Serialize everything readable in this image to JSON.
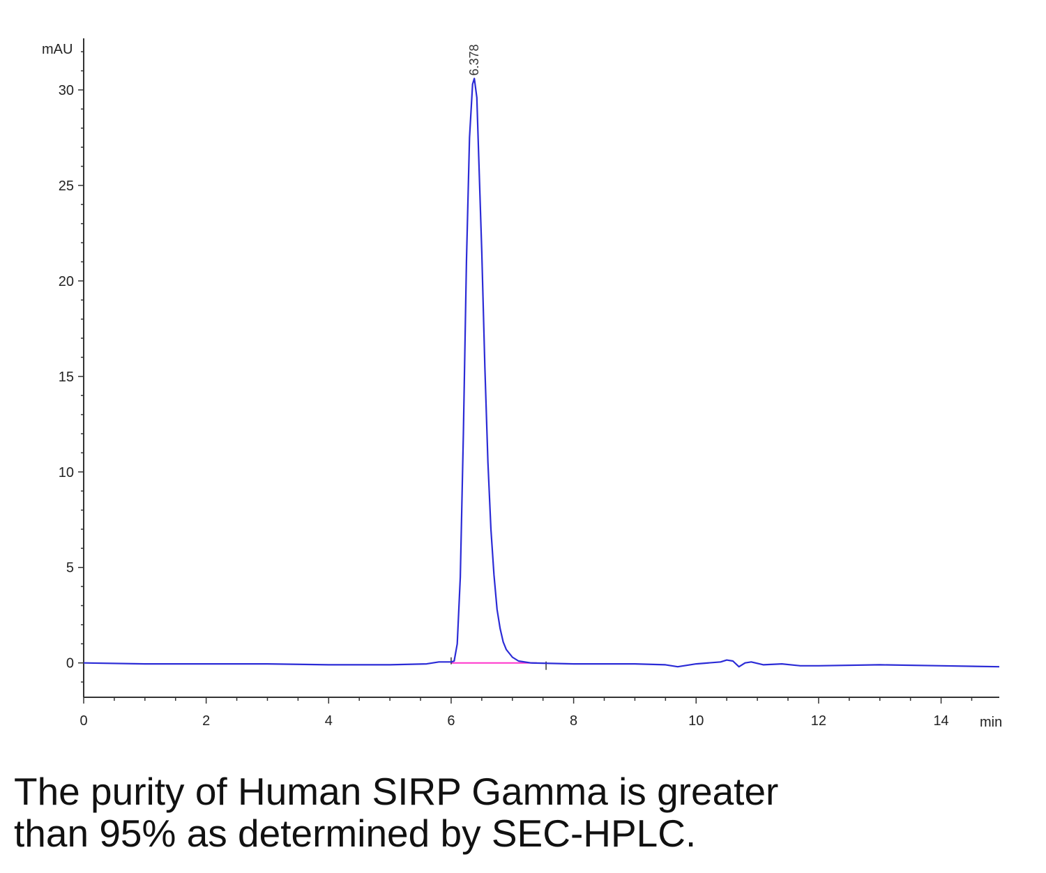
{
  "chart_data": {
    "type": "line",
    "y_unit": "mAU",
    "x_unit": "min",
    "xlim": [
      0,
      14.95
    ],
    "ylim": [
      -1.8,
      32.7
    ],
    "x_ticks": [
      0,
      2,
      4,
      6,
      8,
      10,
      12,
      14
    ],
    "x_tick_labels": [
      "0",
      "2",
      "4",
      "6",
      "8",
      "10",
      "12",
      "14"
    ],
    "y_ticks": [
      0,
      5,
      10,
      15,
      20,
      25,
      30
    ],
    "y_tick_labels": [
      "0",
      "5",
      "10",
      "15",
      "20",
      "25",
      "30"
    ],
    "grid": false,
    "colors": {
      "trace": "#2b2bd6",
      "baseline": "#ff33cc",
      "axis": "#333333"
    },
    "peak_annotation": {
      "x": 6.378,
      "label": "6.378"
    },
    "series": [
      {
        "values": [
          [
            0,
            0
          ],
          [
            1,
            -0.05
          ],
          [
            2,
            -0.05
          ],
          [
            3,
            -0.05
          ],
          [
            4,
            -0.1
          ],
          [
            5,
            -0.1
          ],
          [
            5.6,
            -0.05
          ],
          [
            5.8,
            0.05
          ],
          [
            6.0,
            0.05
          ],
          [
            6.05,
            0.1
          ],
          [
            6.1,
            1.0
          ],
          [
            6.15,
            4.5
          ],
          [
            6.2,
            12.0
          ],
          [
            6.25,
            21.0
          ],
          [
            6.3,
            27.5
          ],
          [
            6.35,
            30.3
          ],
          [
            6.378,
            30.6
          ],
          [
            6.42,
            29.6
          ],
          [
            6.45,
            26.5
          ],
          [
            6.5,
            21.5
          ],
          [
            6.55,
            15.5
          ],
          [
            6.6,
            10.5
          ],
          [
            6.65,
            7.0
          ],
          [
            6.7,
            4.6
          ],
          [
            6.75,
            2.8
          ],
          [
            6.8,
            1.8
          ],
          [
            6.85,
            1.1
          ],
          [
            6.9,
            0.7
          ],
          [
            7.0,
            0.3
          ],
          [
            7.1,
            0.1
          ],
          [
            7.3,
            0.0
          ],
          [
            8,
            -0.05
          ],
          [
            9,
            -0.05
          ],
          [
            9.5,
            -0.1
          ],
          [
            9.7,
            -0.2
          ],
          [
            10.0,
            -0.05
          ],
          [
            10.4,
            0.05
          ],
          [
            10.5,
            0.15
          ],
          [
            10.6,
            0.1
          ],
          [
            10.7,
            -0.2
          ],
          [
            10.8,
            0.0
          ],
          [
            10.9,
            0.05
          ],
          [
            11.1,
            -0.1
          ],
          [
            11.4,
            -0.05
          ],
          [
            11.7,
            -0.15
          ],
          [
            12.0,
            -0.15
          ],
          [
            13.0,
            -0.1
          ],
          [
            14.0,
            -0.15
          ],
          [
            14.95,
            -0.2
          ]
        ]
      }
    ],
    "baseline_segment": [
      [
        6.0,
        0.0
      ],
      [
        7.4,
        0.0
      ]
    ]
  },
  "caption": {
    "line1": "The purity of Human SIRP Gamma is greater",
    "line2": "than 95% as determined by SEC-HPLC."
  }
}
